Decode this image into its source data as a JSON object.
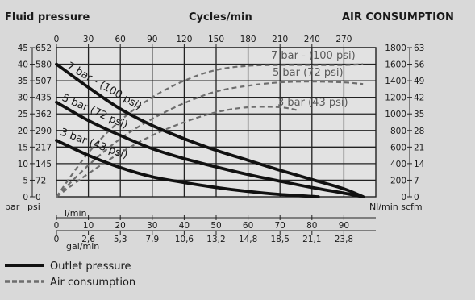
{
  "headers": {
    "left": "Fluid pressure",
    "center": "Cycles/min",
    "right": "AIR CONSUMPTION"
  },
  "chart_data": {
    "type": "line",
    "colors": {
      "outlet": "#111111",
      "air": "#6e6e6e",
      "grid": "#222222",
      "plot_bg": "#e2e2e2"
    },
    "axes": {
      "x_flow": {
        "unit": "l/min",
        "range": [
          0,
          100
        ],
        "ticks": [
          "0",
          "10",
          "20",
          "30",
          "40",
          "50",
          "60",
          "70",
          "80",
          "90"
        ]
      },
      "x_gal": {
        "unit": "gal/min",
        "ticks": [
          "0",
          "2,6",
          "5,3",
          "7,9",
          "10,6",
          "13,2",
          "14,8",
          "18,5",
          "21,1",
          "23,8"
        ]
      },
      "x_cycles": {
        "unit": "Cycles/min",
        "ticks": [
          "0",
          "30",
          "60",
          "90",
          "120",
          "150",
          "180",
          "210",
          "240",
          "270"
        ]
      },
      "y_bar": {
        "unit": "bar",
        "range": [
          0,
          45
        ],
        "ticks": [
          "0",
          "5",
          "10",
          "15",
          "20",
          "25",
          "30",
          "35",
          "40",
          "45"
        ]
      },
      "y_psi": {
        "unit": "psi",
        "ticks": [
          "0",
          "72",
          "145",
          "217",
          "290",
          "362",
          "435",
          "507",
          "580",
          "652"
        ]
      },
      "y_nl": {
        "unit": "Nl/min",
        "range": [
          0,
          1800
        ],
        "ticks": [
          "0",
          "200",
          "400",
          "600",
          "800",
          "1000",
          "1200",
          "1400",
          "1600",
          "1800"
        ]
      },
      "y_scfm": {
        "unit": "scfm",
        "ticks": [
          "0",
          "7",
          "14",
          "21",
          "28",
          "35",
          "42",
          "49",
          "56",
          "63"
        ]
      }
    },
    "outlet_pressure": [
      {
        "name": "7 bar - (100 psi)",
        "x": [
          0,
          10,
          20,
          30,
          40,
          50,
          60,
          70,
          80,
          90,
          96
        ],
        "y": [
          40,
          33,
          26.5,
          21.5,
          17.5,
          14,
          11,
          8,
          5.2,
          2.4,
          0
        ]
      },
      {
        "name": "5 bar (72 psi)",
        "x": [
          0,
          10,
          20,
          30,
          40,
          50,
          60,
          70,
          80,
          90,
          96
        ],
        "y": [
          28.5,
          23,
          18.5,
          14.5,
          11.5,
          9,
          6.7,
          4.7,
          2.8,
          1.1,
          0
        ]
      },
      {
        "name": "3 bar (43 psi)",
        "x": [
          0,
          10,
          20,
          30,
          40,
          50,
          60,
          70,
          82
        ],
        "y": [
          17,
          12.5,
          8.8,
          6,
          4.3,
          2.8,
          1.6,
          0.7,
          0
        ]
      }
    ],
    "air_consumption": [
      {
        "name": "7 bar - (100 psi)",
        "x": [
          0,
          10,
          20,
          30,
          40,
          50,
          60,
          70,
          80,
          90,
          96
        ],
        "y": [
          0,
          530,
          920,
          1200,
          1400,
          1530,
          1580,
          1590,
          1590,
          1590,
          1600
        ]
      },
      {
        "name": "5 bar (72 psi)",
        "x": [
          0,
          10,
          20,
          30,
          40,
          50,
          60,
          70,
          80,
          90,
          96
        ],
        "y": [
          0,
          380,
          700,
          940,
          1130,
          1270,
          1340,
          1380,
          1390,
          1380,
          1360
        ]
      },
      {
        "name": "3 bar (43 psi)",
        "x": [
          0,
          10,
          20,
          30,
          40,
          50,
          60,
          70,
          76
        ],
        "y": [
          0,
          280,
          530,
          740,
          900,
          1020,
          1080,
          1080,
          1040
        ]
      }
    ],
    "legend": [
      {
        "style": "solid",
        "label": "Outlet pressure"
      },
      {
        "style": "dashed",
        "label": "Air consumption"
      }
    ],
    "axis_unit_labels": {
      "left_bottom_bar": "bar",
      "left_bottom_psi": "psi",
      "right_bottom": "Nl/min scfm",
      "x_flow": "l/min",
      "x_gal": "gal/min"
    }
  }
}
